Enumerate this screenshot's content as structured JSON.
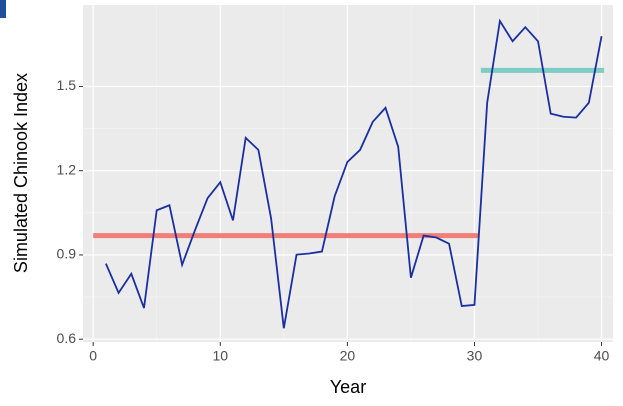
{
  "chart_data": {
    "type": "line",
    "x_label": "Year",
    "y_label": "Simulated Chinook Index",
    "x": [
      1,
      2,
      3,
      4,
      5,
      6,
      7,
      8,
      9,
      10,
      11,
      12,
      13,
      14,
      15,
      16,
      17,
      18,
      19,
      20,
      21,
      22,
      23,
      24,
      25,
      26,
      27,
      28,
      29,
      30,
      31,
      32,
      33,
      34,
      35,
      36,
      37,
      38,
      39,
      40
    ],
    "series": [
      {
        "color": "#1a2fa0",
        "values": [
          0.869,
          0.765,
          0.833,
          0.711,
          1.059,
          1.077,
          0.865,
          0.987,
          1.102,
          1.159,
          1.023,
          1.317,
          1.274,
          1.03,
          0.639,
          0.901,
          0.905,
          0.912,
          1.109,
          1.231,
          1.274,
          1.374,
          1.424,
          1.285,
          0.819,
          0.969,
          0.962,
          0.94,
          0.718,
          0.722,
          1.442,
          1.733,
          1.661,
          1.711,
          1.661,
          1.403,
          1.392,
          1.389,
          1.442,
          1.679
        ]
      }
    ],
    "segments": [
      {
        "x0": 0,
        "x1": 30.3,
        "value": 0.969,
        "color": "#f07f79"
      },
      {
        "x0": 30.5,
        "x1": 40.2,
        "value": 1.557,
        "color": "#7dcdc3"
      }
    ],
    "xlim": [
      -0.8,
      40.9
    ],
    "ylim": [
      0.59,
      1.79
    ],
    "xticks": [
      0,
      10,
      20,
      30,
      40
    ],
    "yticks": [
      0.6,
      0.9,
      1.2,
      1.5
    ],
    "grid": true
  }
}
